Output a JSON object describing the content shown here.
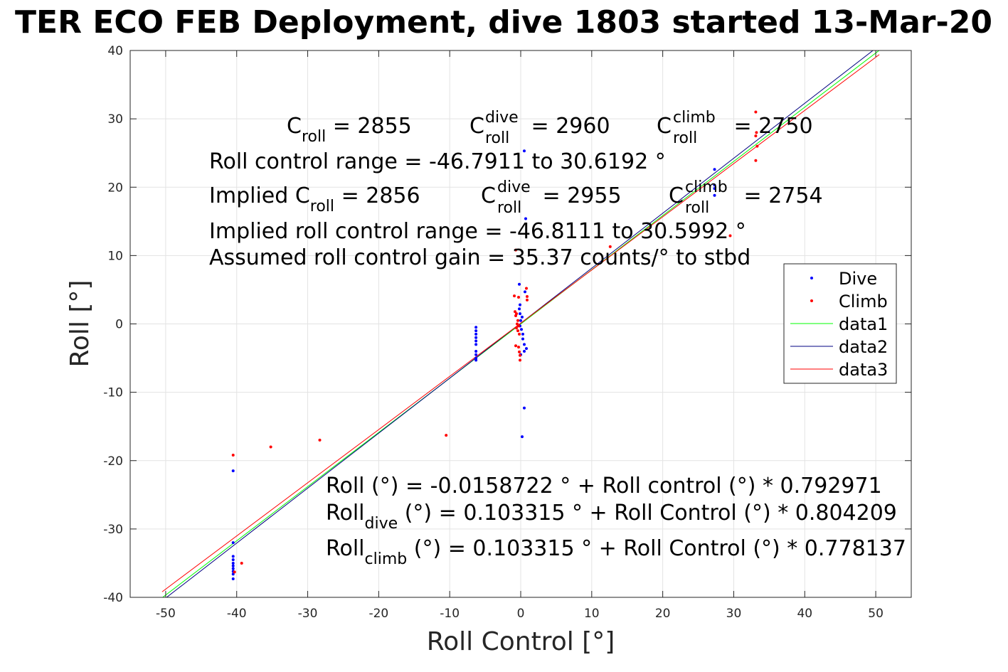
{
  "chart_data": {
    "type": "scatter",
    "title": "TER ECO FEB Deployment, dive 1803 started 13-Mar-20",
    "xlabel": "Roll Control [°]",
    "ylabel": "Roll [°]",
    "xlim": [
      -55,
      55
    ],
    "ylim": [
      -40,
      40
    ],
    "xticks": [
      -50,
      -40,
      -30,
      -20,
      -10,
      0,
      10,
      20,
      30,
      40,
      50
    ],
    "yticks": [
      -40,
      -30,
      -20,
      -10,
      0,
      10,
      20,
      30,
      40
    ],
    "grid": true,
    "legend_position": "right",
    "series": [
      {
        "name": "Dive",
        "kind": "points",
        "color": "#0000ff",
        "points": [
          [
            -40.5,
            -21.5
          ],
          [
            -40.5,
            -32
          ],
          [
            -40.5,
            -34
          ],
          [
            -40.5,
            -34.5
          ],
          [
            -40.5,
            -35
          ],
          [
            -40.5,
            -35.4
          ],
          [
            -40.5,
            -35.8
          ],
          [
            -40.5,
            -36.2
          ],
          [
            -40.5,
            -36.6
          ],
          [
            -40.5,
            -37.3
          ],
          [
            -6.3,
            -0.5
          ],
          [
            -6.3,
            -1.0
          ],
          [
            -6.3,
            -1.5
          ],
          [
            -6.3,
            -2.0
          ],
          [
            -6.3,
            -2.5
          ],
          [
            -6.3,
            -3.0
          ],
          [
            -6.3,
            -4.0
          ],
          [
            -6.3,
            -4.5
          ],
          [
            -6.3,
            -5.0
          ],
          [
            -6.3,
            -5.3
          ],
          [
            0.5,
            25.3
          ],
          [
            0.7,
            15.4
          ],
          [
            -0.2,
            5.8
          ],
          [
            -0.1,
            2.8
          ],
          [
            -0.2,
            2.2
          ],
          [
            -0.1,
            1.5
          ],
          [
            0.6,
            4.7
          ],
          [
            0.2,
            1.0
          ],
          [
            0.0,
            0.5
          ],
          [
            -0.1,
            -0.3
          ],
          [
            0.1,
            -0.8
          ],
          [
            0.3,
            -1.5
          ],
          [
            0.3,
            -2.2
          ],
          [
            0.5,
            -3.0
          ],
          [
            0.5,
            -4.0
          ],
          [
            0.8,
            -3.6
          ],
          [
            0.0,
            -4.5
          ],
          [
            0.5,
            -12.3
          ],
          [
            0.2,
            -16.5
          ],
          [
            27.3,
            22.6
          ],
          [
            27.3,
            20.3
          ],
          [
            27.3,
            19.8
          ],
          [
            27.3,
            18.8
          ]
        ]
      },
      {
        "name": "Climb",
        "kind": "points",
        "color": "#ff0000",
        "points": [
          [
            -40.5,
            -19.2
          ],
          [
            -35.2,
            -18.0
          ],
          [
            -28.3,
            -17.0
          ],
          [
            -10.5,
            -16.3
          ],
          [
            -40.3,
            -36.3
          ],
          [
            -39.3,
            -35.0
          ],
          [
            12.6,
            11.3
          ],
          [
            -0.7,
            10.8
          ],
          [
            0.8,
            5.2
          ],
          [
            0.9,
            4.0
          ],
          [
            0.9,
            3.5
          ],
          [
            -0.9,
            4.1
          ],
          [
            -0.3,
            3.9
          ],
          [
            -0.8,
            1.8
          ],
          [
            -0.6,
            1.5
          ],
          [
            -0.7,
            1.2
          ],
          [
            -0.4,
            0.5
          ],
          [
            -0.5,
            0.0
          ],
          [
            -0.3,
            -0.3
          ],
          [
            -0.6,
            -0.6
          ],
          [
            -0.4,
            -1.0
          ],
          [
            -0.2,
            -1.5
          ],
          [
            -0.7,
            -3.2
          ],
          [
            -0.3,
            -3.4
          ],
          [
            -0.2,
            -4.1
          ],
          [
            -0.1,
            -4.6
          ],
          [
            -0.1,
            -5.3
          ],
          [
            33.1,
            31.0
          ],
          [
            33.2,
            28.0
          ],
          [
            33.1,
            27.5
          ],
          [
            33.3,
            26.0
          ],
          [
            33.1,
            23.9
          ],
          [
            29.5,
            12.9
          ]
        ]
      },
      {
        "name": "data1",
        "kind": "line",
        "color": "#00ff00",
        "x": [
          -50.5,
          50.5
        ],
        "y": [
          -40.06,
          40.03
        ]
      },
      {
        "name": "data2",
        "kind": "line",
        "color": "#000080",
        "x": [
          -50.5,
          50.5
        ],
        "y": [
          -40.51,
          40.72
        ]
      },
      {
        "name": "data3",
        "kind": "line",
        "color": "#ff0000",
        "x": [
          -50.5,
          50.5
        ],
        "y": [
          -39.19,
          39.4
        ]
      }
    ],
    "annotations": {
      "c_roll": {
        "base": "C",
        "sub": "roll",
        "rest": " = 2855"
      },
      "c_roll_dive": {
        "base": "C",
        "sup": "dive",
        "sub": "roll",
        "rest": " = 2960"
      },
      "c_roll_climb": {
        "base": "C",
        "sup": "climb",
        "sub": "roll",
        "rest": " = 2750"
      },
      "range": "Roll control range = -46.7911 to 30.6192 °",
      "implied_c_roll": {
        "base": "Implied C",
        "sub": "roll",
        "rest": " = 2856"
      },
      "implied_c_dive": {
        "base": "C",
        "sup": "dive",
        "sub": "roll",
        "rest": " = 2955"
      },
      "implied_c_climb": {
        "base": "C",
        "sup": "climb",
        "sub": "roll",
        "rest": " = 2754"
      },
      "implied_range": "Implied roll control range = -46.8111 to 30.5992 °",
      "gain": "Assumed roll control gain = 35.37 counts/° to stbd",
      "fit": "Roll (°) = -0.0158722 ° + Roll control (°) * 0.792971",
      "fit_dive": {
        "base": "Roll",
        "sub": "dive",
        "rest": " (°) = 0.103315 ° + Roll Control (°) * 0.804209"
      },
      "fit_climb": {
        "base": "Roll",
        "sub": "climb",
        "rest": " (°) = 0.103315 ° + Roll Control (°) * 0.778137"
      }
    }
  }
}
